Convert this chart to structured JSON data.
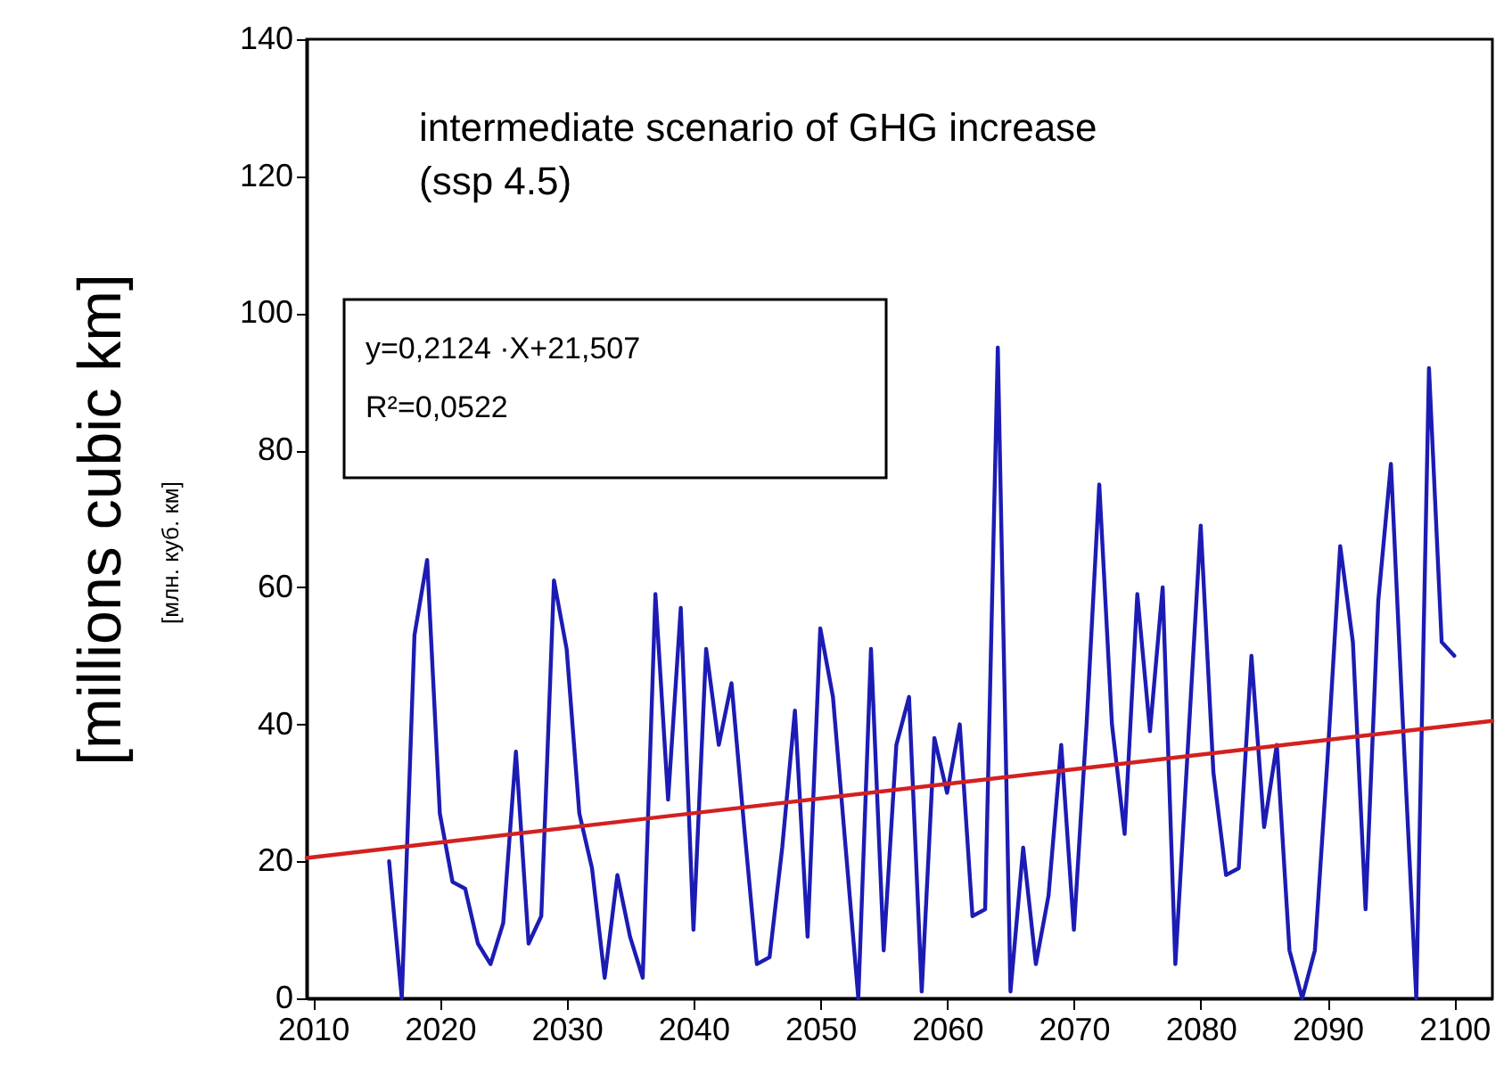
{
  "chart_data": {
    "type": "line",
    "ylabel": "[millions cubic km]",
    "annotations": [
      "intermediate scenario of GHG increase",
      "(ssp 4.5)",
      "y=0,2124 ·X+21,507",
      "R²=0,0522",
      "[млн. куб. км]"
    ],
    "xlim": [
      2009.5,
      2103
    ],
    "ylim": [
      0,
      140
    ],
    "xticks": [
      2010,
      2020,
      2030,
      2040,
      2050,
      2060,
      2070,
      2080,
      2090,
      2100
    ],
    "yticks": [
      0,
      20,
      40,
      60,
      80,
      100,
      120,
      140
    ],
    "grid": false,
    "marker": "none",
    "line_style": "solid",
    "series": [
      {
        "color": "#1c1cb4",
        "x": [
          2016,
          2017,
          2018,
          2019,
          2020,
          2021,
          2022,
          2023,
          2024,
          2025,
          2026,
          2027,
          2028,
          2029,
          2030,
          2031,
          2032,
          2033,
          2034,
          2035,
          2036,
          2037,
          2038,
          2039,
          2040,
          2041,
          2042,
          2043,
          2044,
          2045,
          2046,
          2047,
          2048,
          2049,
          2050,
          2051,
          2052,
          2053,
          2054,
          2055,
          2056,
          2057,
          2058,
          2059,
          2060,
          2061,
          2062,
          2063,
          2064,
          2065,
          2066,
          2067,
          2068,
          2069,
          2070,
          2071,
          2072,
          2073,
          2074,
          2075,
          2076,
          2077,
          2078,
          2079,
          2080,
          2081,
          2082,
          2083,
          2084,
          2085,
          2086,
          2087,
          2088,
          2089,
          2090,
          2091,
          2092,
          2093,
          2094,
          2095,
          2096,
          2097,
          2098,
          2099,
          2100
        ],
        "values": [
          20,
          0,
          53,
          64,
          27,
          17,
          16,
          8,
          5,
          11,
          36,
          8,
          12,
          61,
          51,
          27,
          19,
          3,
          18,
          9,
          3,
          59,
          29,
          57,
          10,
          51,
          37,
          46,
          25,
          5,
          6,
          22,
          42,
          9,
          54,
          44,
          22,
          0,
          51,
          7,
          37,
          44,
          1,
          38,
          30,
          40,
          12,
          13,
          95,
          1,
          22,
          5,
          15,
          37,
          10,
          40,
          75,
          40,
          24,
          59,
          39,
          60,
          5,
          37,
          69,
          33,
          18,
          19,
          50,
          25,
          37,
          7,
          0,
          7,
          35,
          66,
          52,
          13,
          58,
          78,
          38,
          0,
          92,
          52,
          50
        ]
      },
      {
        "type": "line",
        "color": "#d42020",
        "x": [
          2009.5,
          2103
        ],
        "values": [
          20.5,
          40.5
        ]
      }
    ]
  }
}
